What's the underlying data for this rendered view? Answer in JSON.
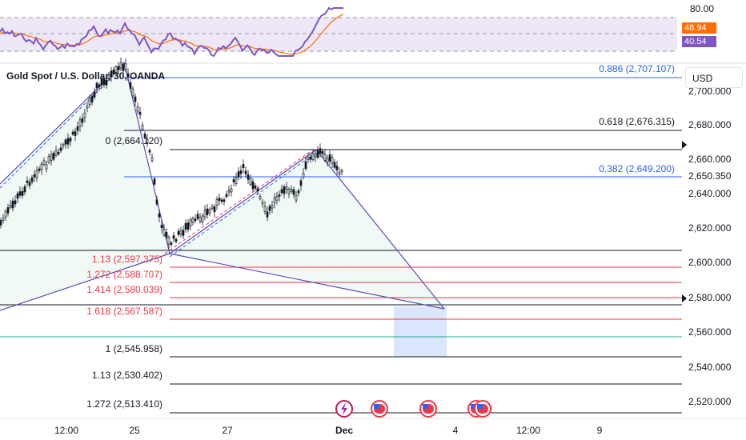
{
  "symbol_title": "Gold Spot / U.S. Dollar, 30, OANDA",
  "currency": "USD",
  "rsi_panel": {
    "upper_label": "80.00",
    "badge_orange": "48.94",
    "badge_purple": "40.54",
    "colors": {
      "rsi": "#7e57c2",
      "ma": "#ff6d00",
      "band": "#ede7f6"
    }
  },
  "price_axis": {
    "ticks": [
      "2,700.000",
      "2,680.000",
      "2,660.000",
      "2,650.350",
      "2,640.000",
      "2,620.000",
      "2,600.000",
      "2,580.000",
      "2,560.000",
      "2,540.000",
      "2,520.000"
    ]
  },
  "time_axis": {
    "labels": [
      "12:00",
      "25",
      "27",
      "Dec",
      "4",
      "12:00",
      "9"
    ]
  },
  "fib_levels": {
    "right": [
      {
        "label": "0.886 (2,707.107)",
        "color": "#2962ff"
      },
      {
        "label": "0.618 (2,676.315)",
        "color": "#131722"
      },
      {
        "label": "0.382 (2,649.200)",
        "color": "#2962ff"
      }
    ],
    "left": [
      {
        "label": "0 (2,664.120)",
        "color": "#131722"
      },
      {
        "label": "1.13 (2,597.375)",
        "color": "#f23645"
      },
      {
        "label": "1.272 (2,588.707)",
        "color": "#f23645"
      },
      {
        "label": "1.414 (2,580.039)",
        "color": "#f23645"
      },
      {
        "label": "1.618 (2,567.587)",
        "color": "#f23645"
      },
      {
        "label": "1 (2,545.958)",
        "color": "#131722"
      },
      {
        "label": "1.13 (2,530.402)",
        "color": "#131722"
      },
      {
        "label": "1.272 (2,513.410)",
        "color": "#131722"
      }
    ]
  },
  "event_icons": [
    "flash-event-icon",
    "us-flag-icon",
    "us-flag-icon",
    "us-flag-icon",
    "us-flag-icon"
  ]
}
